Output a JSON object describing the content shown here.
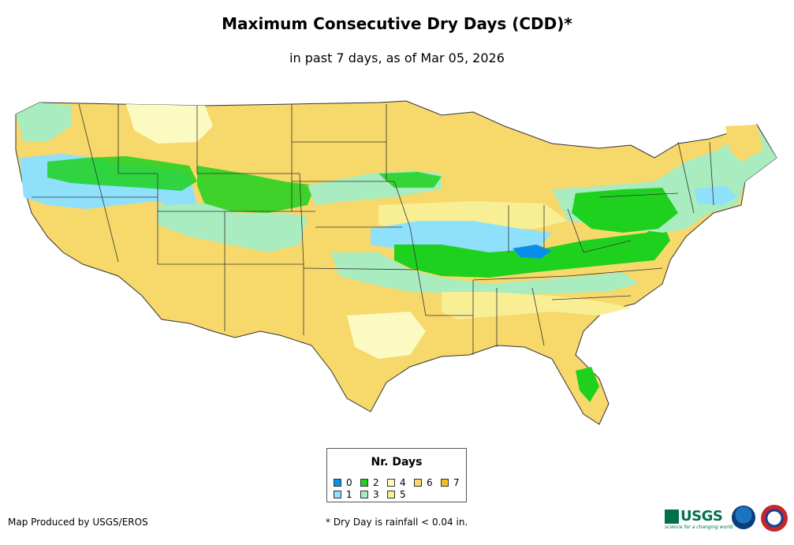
{
  "title": "Maximum Consecutive Dry Days (CDD)*",
  "subtitle": "in past 7 days, as of Mar 05, 2026",
  "legend": {
    "title": "Nr. Days",
    "items": [
      {
        "label": "0",
        "color": "#0b8ee8"
      },
      {
        "label": "1",
        "color": "#8fe0fb"
      },
      {
        "label": "2",
        "color": "#1fd11f"
      },
      {
        "label": "3",
        "color": "#a8ecc0"
      },
      {
        "label": "4",
        "color": "#fbfbc1"
      },
      {
        "label": "5",
        "color": "#f8ef95"
      },
      {
        "label": "6",
        "color": "#f7d86b"
      },
      {
        "label": "7",
        "color": "#f5be1c"
      }
    ]
  },
  "credit": "Map Produced by USGS/EROS",
  "footnote": "* Dry Day is rainfall < 0.04 in.",
  "logos": {
    "usgs": "USGS",
    "usgs_tagline": "science for a changing world",
    "noaa": "noaa-logo",
    "nws": "nws-logo"
  }
}
